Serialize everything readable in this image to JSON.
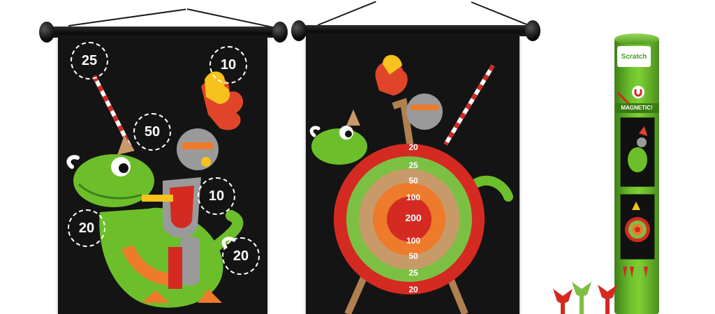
{
  "scene": {
    "description_free": true,
    "colors": {
      "board": "#141414",
      "dragon_green": "#6cbf2a",
      "target_red": "#d42a22",
      "target_green": "#7cc043",
      "target_tan": "#c89a6a",
      "target_orange": "#ee7a2b",
      "easel": "#b08050",
      "flame_yellow": "#f6c21b",
      "flame_red": "#e0452a",
      "knight_grey": "#9a9a9a"
    }
  },
  "left_board": {
    "scores": [
      "25",
      "10",
      "50",
      "10",
      "20",
      "20"
    ]
  },
  "right_board": {
    "rings": [
      "20",
      "25",
      "50",
      "100",
      "200",
      "100",
      "50",
      "25",
      "20"
    ]
  },
  "package": {
    "logo": "Scratch",
    "banner": "MAGNETIC!"
  }
}
